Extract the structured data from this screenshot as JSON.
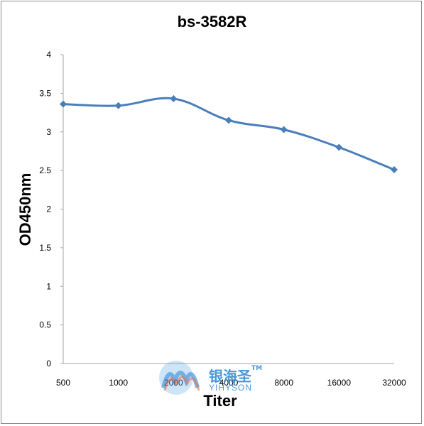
{
  "chart_data": {
    "type": "line",
    "title": "bs-3582R",
    "xlabel": "Titer",
    "ylabel": "OD450nm",
    "categories": [
      "500",
      "1000",
      "2000",
      "4000",
      "8000",
      "16000",
      "32000"
    ],
    "series": [
      {
        "values": [
          3.36,
          3.34,
          3.43,
          3.15,
          3.03,
          2.8,
          2.51
        ]
      }
    ],
    "ylim": [
      0,
      4
    ],
    "yticks": [
      "0",
      "0.5",
      "1",
      "1.5",
      "2",
      "2.5",
      "3",
      "3.5",
      "4"
    ],
    "grid": false,
    "line_color": "#4a7ebb",
    "legend": "none"
  },
  "watermark": {
    "text_cn": "银海圣",
    "tm": "TM",
    "text_en": "YIHYSON"
  }
}
